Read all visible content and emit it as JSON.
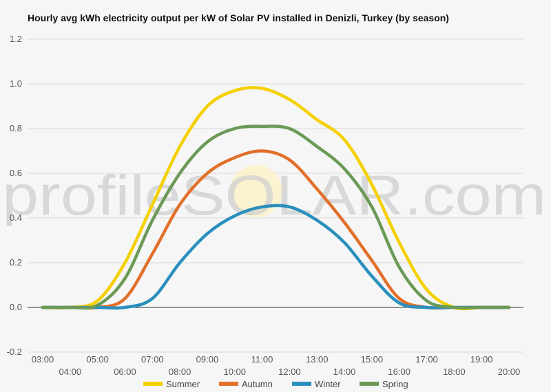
{
  "chart_data": {
    "type": "line",
    "title": "Hourly avg kWh electricity output per kW of Solar PV installed in Denizli, Turkey (by season)",
    "xlabel": "",
    "ylabel": "",
    "categories": [
      "03:00",
      "04:00",
      "05:00",
      "06:00",
      "07:00",
      "08:00",
      "09:00",
      "10:00",
      "11:00",
      "12:00",
      "13:00",
      "14:00",
      "15:00",
      "16:00",
      "17:00",
      "18:00",
      "19:00",
      "20:00"
    ],
    "ylim": [
      -0.2,
      1.2
    ],
    "yticks": [
      "-0.2",
      "0.0",
      "0.2",
      "0.4",
      "0.6",
      "0.8",
      "1.0",
      "1.2"
    ],
    "grid": true,
    "legend_position": "bottom",
    "watermark": "profileSOLAR.com",
    "series": [
      {
        "name": "Summer",
        "color": "#f5d000",
        "values": [
          0,
          0,
          0.03,
          0.2,
          0.46,
          0.72,
          0.9,
          0.97,
          0.98,
          0.93,
          0.84,
          0.75,
          0.55,
          0.29,
          0.08,
          0,
          0,
          0
        ]
      },
      {
        "name": "Autumn",
        "color": "#e2702a",
        "values": [
          0,
          0,
          0,
          0.04,
          0.24,
          0.46,
          0.6,
          0.67,
          0.7,
          0.66,
          0.53,
          0.38,
          0.21,
          0.04,
          0,
          0,
          0,
          0
        ]
      },
      {
        "name": "Winter",
        "color": "#2a8fbd",
        "values": [
          0,
          0,
          0,
          0,
          0.04,
          0.2,
          0.33,
          0.41,
          0.45,
          0.45,
          0.39,
          0.29,
          0.14,
          0.02,
          0,
          0,
          0,
          0
        ]
      },
      {
        "name": "Spring",
        "color": "#6a9a56",
        "values": [
          0,
          0,
          0.01,
          0.13,
          0.39,
          0.6,
          0.74,
          0.8,
          0.81,
          0.8,
          0.72,
          0.62,
          0.45,
          0.18,
          0.03,
          0,
          0,
          0
        ]
      }
    ]
  }
}
